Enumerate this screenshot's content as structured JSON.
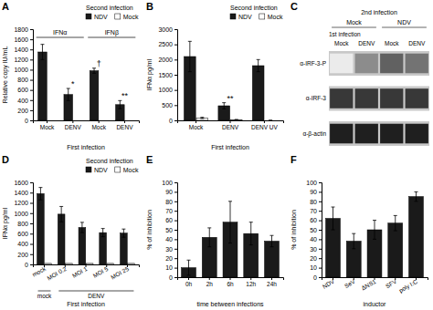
{
  "chart_data": [
    {
      "type": "bar",
      "title": "A",
      "categories": [
        "Mock",
        "DENV",
        "Mock",
        "DENV"
      ],
      "series": [
        {
          "name": "NDV",
          "color": "#1a1a1a",
          "values": [
            1350,
            510,
            980,
            310
          ],
          "errors": [
            150,
            120,
            50,
            80
          ]
        },
        {
          "name": "Mock",
          "color": "#ffffff",
          "values": [
            0,
            0,
            0,
            0
          ]
        }
      ],
      "xlabel": "First infection",
      "ylabel": "Relative copy IU/mL",
      "ylim": [
        0,
        1800
      ],
      "yticks": [
        0,
        200,
        400,
        600,
        800,
        1000,
        1200,
        1400,
        1600,
        1800
      ],
      "legend": "upper right",
      "legend_title": "Second infection",
      "brackets": [
        {
          "label": "IFNα",
          "count": 2
        },
        {
          "label": "IFNβ",
          "count": 2
        }
      ],
      "annotations": [
        {
          "text": "*",
          "index": 1
        },
        {
          "text": "**",
          "index": 3
        },
        {
          "text": "†",
          "index": 2
        }
      ]
    },
    {
      "type": "bar",
      "title": "B",
      "categories": [
        "Mock",
        "DENV",
        "DENV UV"
      ],
      "series": [
        {
          "name": "NDV",
          "color": "#1a1a1a",
          "values": [
            2100,
            480,
            1800
          ],
          "errors": [
            500,
            100,
            200
          ]
        },
        {
          "name": "Mock",
          "color": "#ffffff",
          "values": [
            80,
            20,
            0
          ],
          "errors": [
            20,
            10,
            0
          ]
        }
      ],
      "xlabel": "First infection",
      "ylabel": "IFNα pg/ml",
      "ylim": [
        0,
        3000
      ],
      "yticks": [
        0,
        500,
        1000,
        1500,
        2000,
        2500,
        3000
      ],
      "legend": "upper right",
      "legend_title": "Second infection",
      "annotations": [
        {
          "text": "**",
          "index": 1
        }
      ]
    },
    {
      "type": "heatmap",
      "title": "C",
      "group_title": "2nd infection",
      "groups": [
        {
          "label": "Mock",
          "count": 2
        },
        {
          "label": "NDV",
          "count": 2
        }
      ],
      "xlabel": "1st infection",
      "categories": [
        "Mock",
        "DENV",
        "Mock",
        "DENV"
      ],
      "rows": [
        "α-IRF-3-P",
        "α-IRF-3",
        "α-β-actin"
      ],
      "cells": [
        [
          0.92,
          0.55,
          0.38,
          0.45
        ],
        [
          0.22,
          0.22,
          0.22,
          0.22
        ],
        [
          0.12,
          0.12,
          0.12,
          0.12
        ]
      ],
      "color": "#c8c8c8"
    },
    {
      "type": "bar",
      "title": "D",
      "categories": [
        "mock",
        "MOI 0.2",
        "MOI 1",
        "MOI 5",
        "MOI 25"
      ],
      "series": [
        {
          "name": "NDV",
          "color": "#1a1a1a",
          "values": [
            1380,
            980,
            720,
            620,
            610
          ],
          "errors": [
            120,
            150,
            100,
            80,
            80
          ]
        },
        {
          "name": "Mock",
          "color": "#ffffff",
          "values": [
            20,
            20,
            20,
            20,
            20
          ]
        }
      ],
      "xlabel": "First infection",
      "ylabel": "IFNα pg/ml",
      "ylim": [
        0,
        1600
      ],
      "yticks": [
        0,
        200,
        400,
        600,
        800,
        1000,
        1200,
        1400,
        1600
      ],
      "legend": "upper right",
      "legend_title": "Second infection",
      "groups": [
        {
          "label": "mock",
          "count": 1
        },
        {
          "label": "DENV",
          "count": 4
        }
      ]
    },
    {
      "type": "bar",
      "title": "E",
      "categories": [
        "0h",
        "2h",
        "6h",
        "12h",
        "24h"
      ],
      "values": [
        10,
        42,
        58,
        46,
        38
      ],
      "errors": [
        8,
        10,
        22,
        12,
        6
      ],
      "color": "#1a1a1a",
      "xlabel": "time between infections",
      "ylabel": "% of inhibition",
      "ylim": [
        0,
        100
      ],
      "yticks": [
        0,
        10,
        20,
        30,
        40,
        50,
        60,
        70,
        80,
        90,
        100
      ]
    },
    {
      "type": "bar",
      "title": "F",
      "categories": [
        "NDV",
        "SeV",
        "ΔNS1",
        "SFV",
        "poly I:C"
      ],
      "values": [
        62,
        38,
        50,
        57,
        85
      ],
      "errors": [
        12,
        8,
        10,
        8,
        5
      ],
      "color": "#1a1a1a",
      "xlabel": "inductor",
      "ylabel": "% of inhibition",
      "ylim": [
        0,
        100
      ],
      "yticks": [
        0,
        10,
        20,
        30,
        40,
        50,
        60,
        70,
        80,
        90,
        100
      ]
    }
  ]
}
